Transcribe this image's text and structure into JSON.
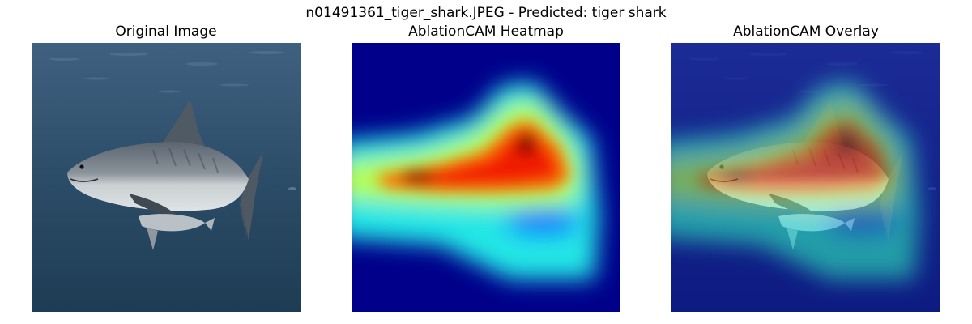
{
  "figure": {
    "suptitle": "n01491361_tiger_shark.JPEG - Predicted: tiger shark"
  },
  "panels": [
    {
      "title": "Original Image"
    },
    {
      "title": "AblationCAM Heatmap"
    },
    {
      "title": "AblationCAM Overlay"
    }
  ],
  "colors": {
    "water_top": "#3a5a78",
    "water_bottom": "#1f3e56",
    "heat_background": "#00008b",
    "heat_peak": "#8b0000"
  }
}
